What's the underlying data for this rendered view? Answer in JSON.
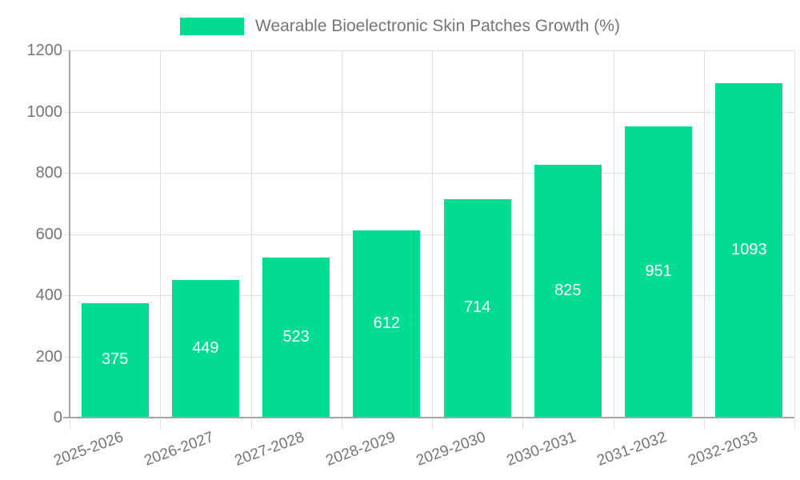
{
  "chart_data": {
    "type": "bar",
    "title": "",
    "legend": {
      "label": "Wearable Bioelectronic Skin Patches Growth (%)",
      "position": "top-center"
    },
    "categories": [
      "2025-2026",
      "2026-2027",
      "2027-2028",
      "2028-2029",
      "2029-2030",
      "2030-2031",
      "2031-2032",
      "2032-2033"
    ],
    "values": [
      375,
      449,
      523,
      612,
      714,
      825,
      951,
      1093
    ],
    "value_labels_shown": true,
    "xlabel": "",
    "ylabel": "",
    "ylim": [
      0,
      1200
    ],
    "ytick_step": 200,
    "grid": true,
    "colors": {
      "bar": "#00dc92",
      "grid": "#e0e0e0",
      "axis": "#a6a6a6",
      "tick_label": "#757575",
      "legend_text": "#757575",
      "value_label": "#ffffff",
      "background": "#ffffff"
    }
  }
}
